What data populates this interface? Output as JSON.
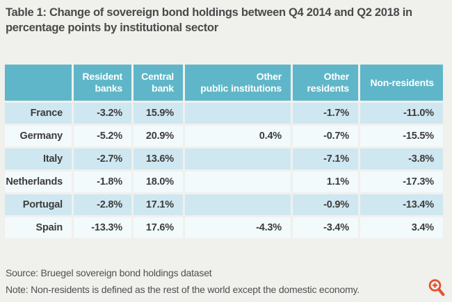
{
  "page": {
    "title": "Table 1:  Change of sovereign bond holdings between Q4 2014 and Q2 2018 in\npercentage points by institutional sector",
    "source": "Source: Bruegel sovereign bond holdings dataset",
    "note": "Note: Non-residents is defined as the rest of the world except the domestic economy."
  },
  "chart_data": {
    "type": "table",
    "title": "Change of sovereign bond holdings between Q4 2014 and Q2 2018 in percentage points by institutional sector",
    "columns": [
      "",
      "Resident\nbanks",
      "Central\nbank",
      "Other\npublic institutions",
      "Other\nresidents",
      "Non-residents"
    ],
    "rows": [
      {
        "country": "France",
        "values": [
          "-3.2%",
          "15.9%",
          "",
          "-1.7%",
          "-11.0%"
        ]
      },
      {
        "country": "Germany",
        "values": [
          "-5.2%",
          "20.9%",
          "0.4%",
          "-0.7%",
          "-15.5%"
        ]
      },
      {
        "country": "Italy",
        "values": [
          "-2.7%",
          "13.6%",
          "",
          "-7.1%",
          "-3.8%"
        ]
      },
      {
        "country": "Netherlands",
        "values": [
          "-1.8%",
          "18.0%",
          "",
          "1.1%",
          "-17.3%"
        ]
      },
      {
        "country": "Portugal",
        "values": [
          "-2.8%",
          "17.1%",
          "",
          "-0.9%",
          "-13.4%"
        ]
      },
      {
        "country": "Spain",
        "values": [
          "-13.3%",
          "17.6%",
          "-4.3%",
          "-3.4%",
          "3.4%"
        ]
      }
    ]
  },
  "icons": {
    "zoom_in": "magnifier-plus-icon"
  },
  "colors": {
    "header_bg": "#5fb6c8",
    "row_stripe_bg": "#cfe7f0",
    "row_plain_bg": "#f2fafc",
    "page_bg": "#f0f0ed",
    "header_text": "#ffffff",
    "body_text": "#3c3c3c",
    "title_text": "#4a4a4a",
    "zoom_icon": "#e2532d"
  }
}
